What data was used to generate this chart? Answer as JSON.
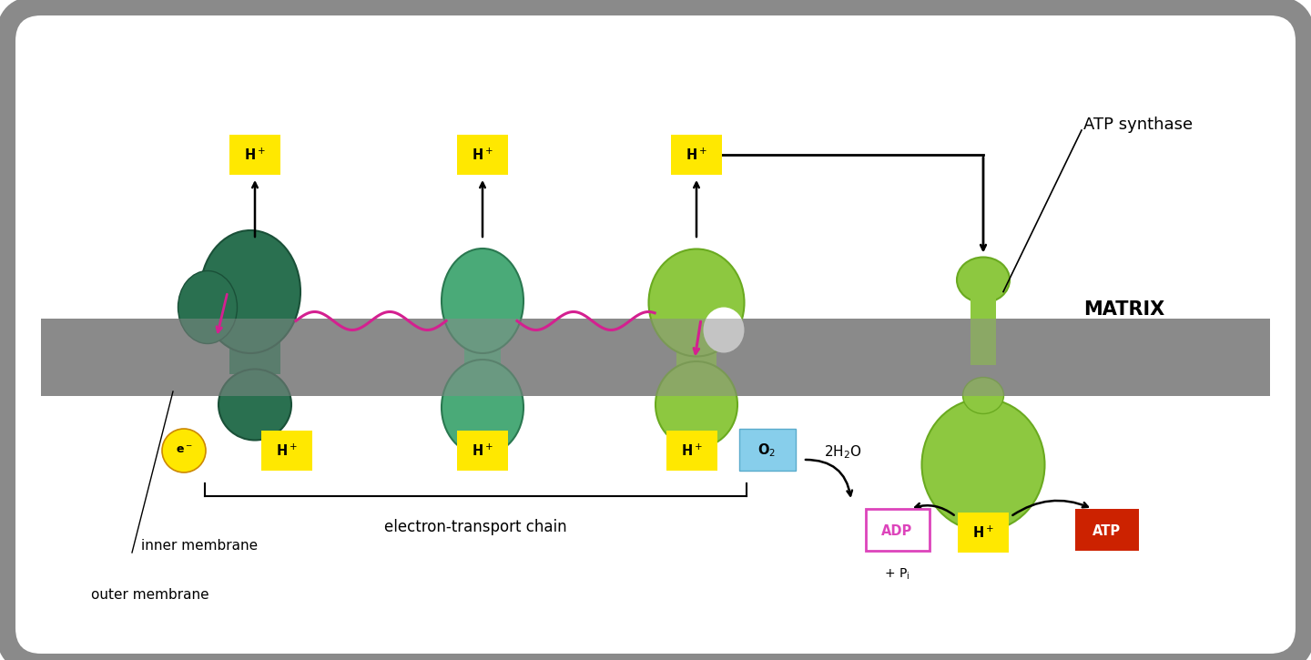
{
  "bg_color": "#ffffff",
  "gray_membrane": "#8a8a8a",
  "dark_green": "#2a7050",
  "mid_green": "#4aaa78",
  "light_green": "#8dc840",
  "yellow_bg": "#FFE800",
  "pink": "#d42090",
  "light_blue": "#7dc8e8",
  "red_bg": "#cc2200",
  "magenta_border": "#dd44bb",
  "atp_synthase_label": "ATP synthase",
  "matrix_label": "MATRIX",
  "etc_label": "electron-transport chain",
  "inner_mem_label": "inner membrane",
  "outer_mem_label": "outer membrane"
}
